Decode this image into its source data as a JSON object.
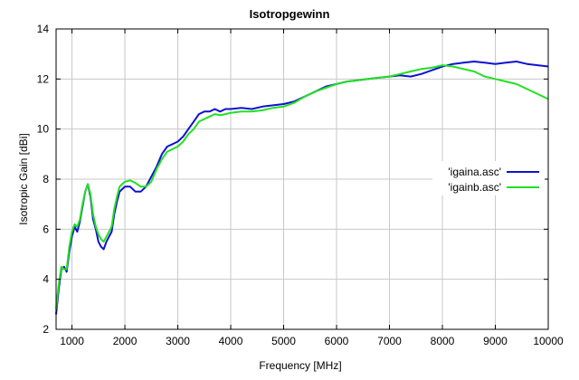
{
  "chart_data": {
    "type": "line",
    "title": "Isotropgewinn",
    "xlabel": "Frequency [MHz]",
    "ylabel": "Isotropic Gain [dBi]",
    "xlim": [
      700,
      10000
    ],
    "ylim": [
      2,
      14
    ],
    "xticks": [
      1000,
      2000,
      3000,
      4000,
      5000,
      6000,
      7000,
      8000,
      9000,
      10000
    ],
    "yticks": [
      2,
      4,
      6,
      8,
      10,
      12,
      14
    ],
    "grid": true,
    "legend_position": "right",
    "series": [
      {
        "name": "'igaina.asc'",
        "color": "#1010d0",
        "x": [
          700,
          750,
          800,
          850,
          900,
          950,
          1000,
          1050,
          1100,
          1150,
          1200,
          1250,
          1300,
          1350,
          1400,
          1450,
          1500,
          1550,
          1600,
          1650,
          1700,
          1750,
          1800,
          1850,
          1900,
          1950,
          2000,
          2100,
          2200,
          2300,
          2400,
          2500,
          2600,
          2700,
          2800,
          2900,
          3000,
          3100,
          3200,
          3300,
          3400,
          3500,
          3600,
          3700,
          3800,
          3900,
          4000,
          4200,
          4400,
          4600,
          4800,
          5000,
          5200,
          5400,
          5600,
          5800,
          6000,
          6200,
          6400,
          6600,
          6800,
          7000,
          7200,
          7400,
          7600,
          7800,
          8000,
          8200,
          8400,
          8600,
          8800,
          9000,
          9200,
          9400,
          9600,
          9800,
          10000
        ],
        "y": [
          2.6,
          3.6,
          4.4,
          4.5,
          4.3,
          5.1,
          5.7,
          6.1,
          5.9,
          6.3,
          6.9,
          7.5,
          7.8,
          7.3,
          6.4,
          6.0,
          5.5,
          5.3,
          5.2,
          5.5,
          5.7,
          5.9,
          6.6,
          7.1,
          7.5,
          7.6,
          7.7,
          7.7,
          7.5,
          7.5,
          7.7,
          8.1,
          8.5,
          9.0,
          9.3,
          9.4,
          9.5,
          9.7,
          10.0,
          10.3,
          10.6,
          10.7,
          10.7,
          10.8,
          10.7,
          10.8,
          10.8,
          10.85,
          10.8,
          10.9,
          10.95,
          11.0,
          11.1,
          11.3,
          11.5,
          11.7,
          11.8,
          11.9,
          11.95,
          12.0,
          12.05,
          12.1,
          12.15,
          12.1,
          12.2,
          12.35,
          12.5,
          12.6,
          12.65,
          12.7,
          12.65,
          12.6,
          12.65,
          12.7,
          12.6,
          12.55,
          12.5
        ]
      },
      {
        "name": "'igainb.asc'",
        "color": "#22e022",
        "x": [
          700,
          750,
          800,
          850,
          900,
          950,
          1000,
          1050,
          1100,
          1150,
          1200,
          1250,
          1300,
          1350,
          1400,
          1450,
          1500,
          1550,
          1600,
          1650,
          1700,
          1750,
          1800,
          1850,
          1900,
          1950,
          2000,
          2100,
          2200,
          2300,
          2400,
          2500,
          2600,
          2700,
          2800,
          2900,
          3000,
          3100,
          3200,
          3300,
          3400,
          3500,
          3600,
          3700,
          3800,
          3900,
          4000,
          4200,
          4400,
          4600,
          4800,
          5000,
          5200,
          5400,
          5600,
          5800,
          6000,
          6200,
          6400,
          6600,
          6800,
          7000,
          7200,
          7400,
          7600,
          7800,
          8000,
          8200,
          8400,
          8600,
          8800,
          9000,
          9200,
          9400,
          9600,
          9800,
          10000
        ],
        "y": [
          2.8,
          3.8,
          4.5,
          4.4,
          4.4,
          5.3,
          5.9,
          6.2,
          6.1,
          6.4,
          7.0,
          7.5,
          7.8,
          7.4,
          6.6,
          6.1,
          5.8,
          5.6,
          5.5,
          5.7,
          5.9,
          6.1,
          6.8,
          7.3,
          7.7,
          7.8,
          7.9,
          7.95,
          7.85,
          7.7,
          7.7,
          7.9,
          8.4,
          8.8,
          9.1,
          9.2,
          9.3,
          9.5,
          9.8,
          10.0,
          10.3,
          10.4,
          10.5,
          10.6,
          10.55,
          10.6,
          10.65,
          10.7,
          10.7,
          10.75,
          10.85,
          10.9,
          11.05,
          11.3,
          11.5,
          11.65,
          11.8,
          11.9,
          11.95,
          12.0,
          12.05,
          12.1,
          12.2,
          12.3,
          12.4,
          12.45,
          12.55,
          12.5,
          12.4,
          12.3,
          12.1,
          12.0,
          11.9,
          11.8,
          11.6,
          11.4,
          11.2
        ]
      }
    ]
  }
}
